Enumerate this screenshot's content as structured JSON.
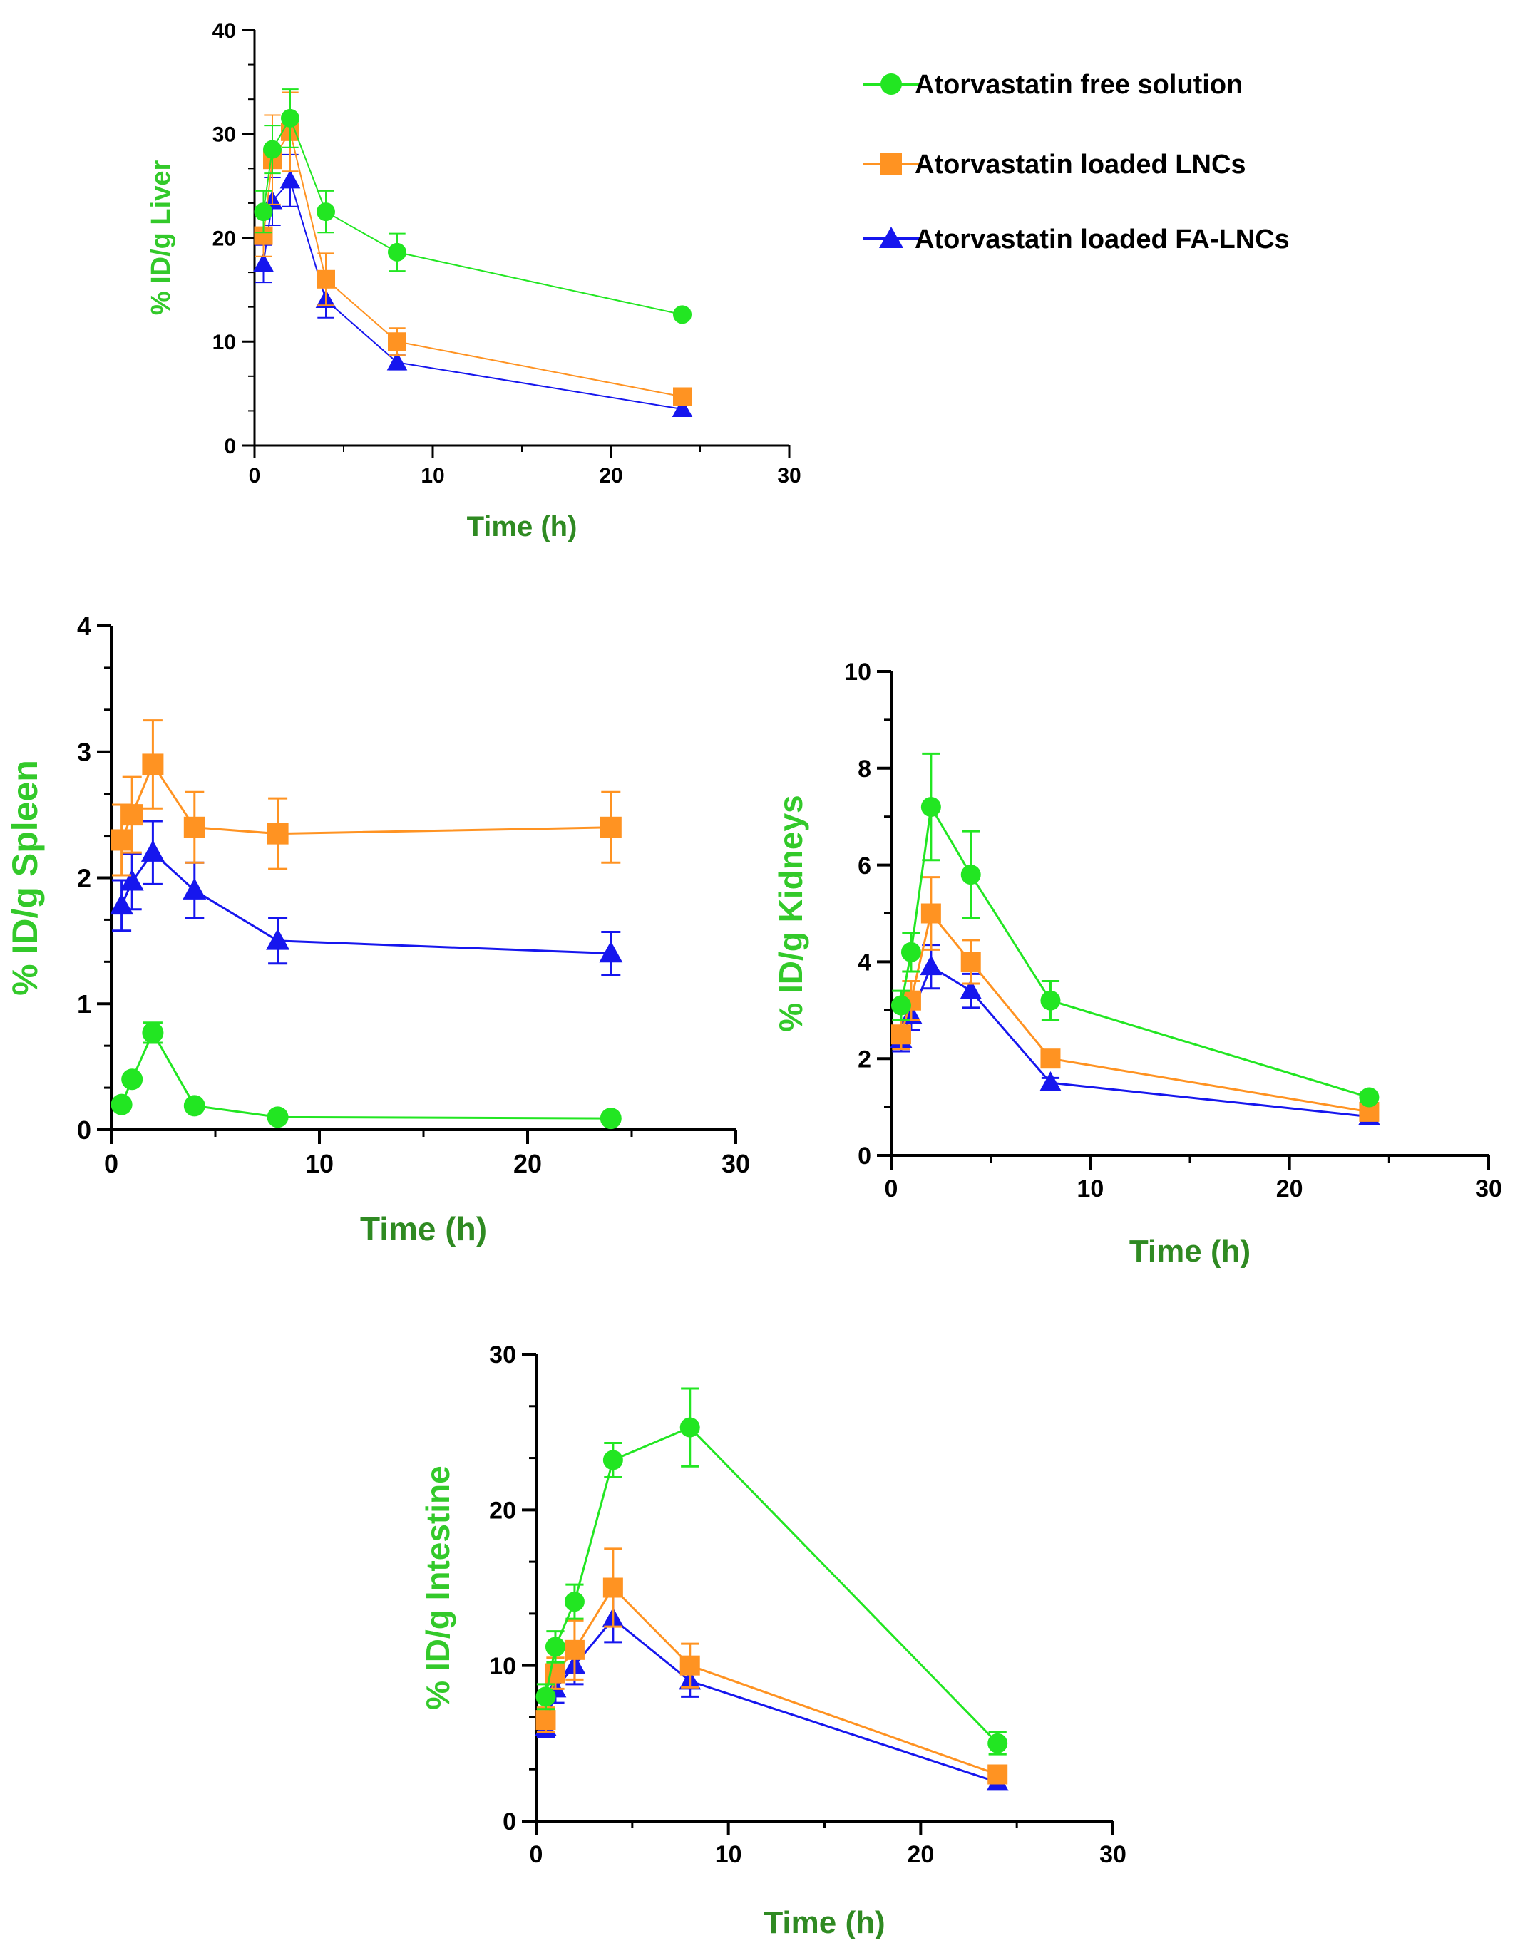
{
  "colors": {
    "free": "#22e622",
    "lnc": "#ff9322",
    "fa": "#1616ee",
    "axis": "#000000",
    "title_green": "#2f8a22",
    "ylabel_green": "#33c92a"
  },
  "legend": {
    "items": [
      {
        "label": "Atorvastatin free solution",
        "marker": "circle",
        "color_key": "free"
      },
      {
        "label": "Atorvastatin loaded LNCs",
        "marker": "square",
        "color_key": "lnc"
      },
      {
        "label": "Atorvastatin loaded FA-LNCs",
        "marker": "triangle",
        "color_key": "fa"
      }
    ]
  },
  "chart_data": [
    {
      "id": "liver",
      "type": "line",
      "xlabel": "Time (h)",
      "ylabel": "% ID/g Liver",
      "xlim": [
        0,
        30
      ],
      "xticks": [
        0,
        10,
        20,
        30
      ],
      "ylim": [
        0,
        40
      ],
      "yticks": [
        0,
        10,
        20,
        30,
        40
      ],
      "x": [
        0.5,
        1,
        2,
        4,
        8,
        24
      ],
      "series": [
        {
          "name": "Atorvastatin free solution",
          "marker": "circle",
          "color_key": "free",
          "values": [
            22.5,
            28.5,
            31.5,
            22.5,
            18.6,
            12.6
          ],
          "errors": [
            2.0,
            2.3,
            2.8,
            2.0,
            1.8,
            0.4
          ]
        },
        {
          "name": "Atorvastatin loaded LNCs",
          "marker": "square",
          "color_key": "lnc",
          "values": [
            20.2,
            27.5,
            30.2,
            16.0,
            10.0,
            4.7
          ],
          "errors": [
            2.0,
            4.3,
            3.8,
            2.5,
            1.3,
            0.5
          ]
        },
        {
          "name": "Atorvastatin loaded FA-LNCs",
          "marker": "triangle",
          "color_key": "fa",
          "values": [
            17.5,
            23.5,
            25.5,
            14.0,
            8.0,
            3.5
          ],
          "errors": [
            1.8,
            2.3,
            2.5,
            1.7,
            0.7,
            0.4
          ]
        }
      ]
    },
    {
      "id": "spleen",
      "type": "line",
      "xlabel": "Time (h)",
      "ylabel": "% ID/g Spleen",
      "xlim": [
        0,
        30
      ],
      "xticks": [
        0,
        10,
        20,
        30
      ],
      "ylim": [
        0,
        4
      ],
      "yticks": [
        0,
        1,
        2,
        3,
        4
      ],
      "x": [
        0.5,
        1,
        2,
        4,
        8,
        24
      ],
      "series": [
        {
          "name": "Atorvastatin free solution",
          "marker": "circle",
          "color_key": "free",
          "values": [
            0.2,
            0.4,
            0.77,
            0.19,
            0.1,
            0.09
          ],
          "errors": [
            0.02,
            0.03,
            0.08,
            0.02,
            0.01,
            0.01
          ]
        },
        {
          "name": "Atorvastatin loaded LNCs",
          "marker": "square",
          "color_key": "lnc",
          "values": [
            2.3,
            2.5,
            2.9,
            2.4,
            2.35,
            2.4
          ],
          "errors": [
            0.28,
            0.3,
            0.35,
            0.28,
            0.28,
            0.28
          ]
        },
        {
          "name": "Atorvastatin loaded FA-LNCs",
          "marker": "triangle",
          "color_key": "fa",
          "values": [
            1.78,
            1.97,
            2.2,
            1.9,
            1.5,
            1.4
          ],
          "errors": [
            0.2,
            0.22,
            0.25,
            0.22,
            0.18,
            0.17
          ]
        }
      ]
    },
    {
      "id": "kidneys",
      "type": "line",
      "xlabel": "Time (h)",
      "ylabel": "% ID/g Kidneys",
      "xlim": [
        0,
        30
      ],
      "xticks": [
        0,
        10,
        20,
        30
      ],
      "ylim": [
        0,
        10
      ],
      "yticks": [
        0,
        2,
        4,
        6,
        8,
        10
      ],
      "x": [
        0.5,
        1,
        2,
        4,
        8,
        24
      ],
      "series": [
        {
          "name": "Atorvastatin free solution",
          "marker": "circle",
          "color_key": "free",
          "values": [
            3.1,
            4.2,
            7.2,
            5.8,
            3.2,
            1.2
          ],
          "errors": [
            0.3,
            0.4,
            1.1,
            0.9,
            0.4,
            0.1
          ]
        },
        {
          "name": "Atorvastatin loaded LNCs",
          "marker": "square",
          "color_key": "lnc",
          "values": [
            2.5,
            3.2,
            5.0,
            4.0,
            2.0,
            0.9
          ],
          "errors": [
            0.3,
            0.4,
            0.75,
            0.45,
            0.15,
            0.1
          ]
        },
        {
          "name": "Atorvastatin loaded FA-LNCs",
          "marker": "triangle",
          "color_key": "fa",
          "values": [
            2.4,
            2.9,
            3.9,
            3.4,
            1.5,
            0.8
          ],
          "errors": [
            0.25,
            0.3,
            0.45,
            0.35,
            0.1,
            0.1
          ]
        }
      ]
    },
    {
      "id": "intestine",
      "type": "line",
      "xlabel": "Time (h)",
      "ylabel": "% ID/g Intestine",
      "xlim": [
        0,
        30
      ],
      "xticks": [
        0,
        10,
        20,
        30
      ],
      "ylim": [
        0,
        30
      ],
      "yticks": [
        0,
        10,
        20,
        30
      ],
      "x": [
        0.5,
        1,
        2,
        4,
        8,
        24
      ],
      "series": [
        {
          "name": "Atorvastatin free solution",
          "marker": "circle",
          "color_key": "free",
          "values": [
            8.0,
            11.2,
            14.1,
            23.2,
            25.3,
            5.0
          ],
          "errors": [
            0.8,
            1.0,
            1.1,
            1.1,
            2.5,
            0.7
          ]
        },
        {
          "name": "Atorvastatin loaded LNCs",
          "marker": "square",
          "color_key": "lnc",
          "values": [
            6.5,
            9.5,
            11.0,
            15.0,
            10.0,
            3.0
          ],
          "errors": [
            0.8,
            1.0,
            1.9,
            2.5,
            1.4,
            0.5
          ]
        },
        {
          "name": "Atorvastatin loaded FA-LNCs",
          "marker": "triangle",
          "color_key": "fa",
          "values": [
            6.0,
            8.5,
            10.0,
            13.0,
            9.0,
            2.5
          ],
          "errors": [
            0.6,
            0.9,
            1.2,
            1.5,
            1.0,
            0.4
          ]
        }
      ]
    }
  ]
}
